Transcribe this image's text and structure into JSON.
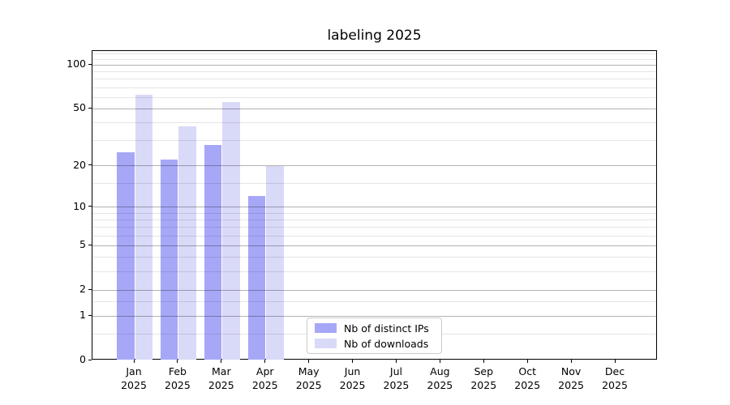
{
  "chart_data": {
    "type": "bar",
    "title": "labeling 2025",
    "categories": [
      "Jan",
      "Feb",
      "Mar",
      "Apr",
      "May",
      "Jun",
      "Jul",
      "Aug",
      "Sep",
      "Oct",
      "Nov",
      "Dec"
    ],
    "category_year": "2025",
    "series": [
      {
        "name": "Nb of distinct IPs",
        "color": "#a7a7f7",
        "values": [
          25,
          22,
          28,
          12,
          null,
          null,
          null,
          null,
          null,
          null,
          null,
          null
        ]
      },
      {
        "name": "Nb of downloads",
        "color": "#d9d9f8",
        "values": [
          63,
          38,
          56,
          20,
          null,
          null,
          null,
          null,
          null,
          null,
          null,
          null
        ]
      }
    ],
    "yscale": "log1p",
    "yticks": [
      0,
      1,
      2,
      5,
      10,
      20,
      50,
      100
    ],
    "minor_gridlines": [
      0.5,
      1.5,
      3,
      4,
      6,
      7,
      8,
      9,
      15,
      30,
      40,
      60,
      70,
      80,
      90,
      110,
      120
    ],
    "ylim": [
      0,
      125
    ],
    "xlabel": "",
    "ylabel": "",
    "grid": true,
    "legend_position": "lower center"
  }
}
